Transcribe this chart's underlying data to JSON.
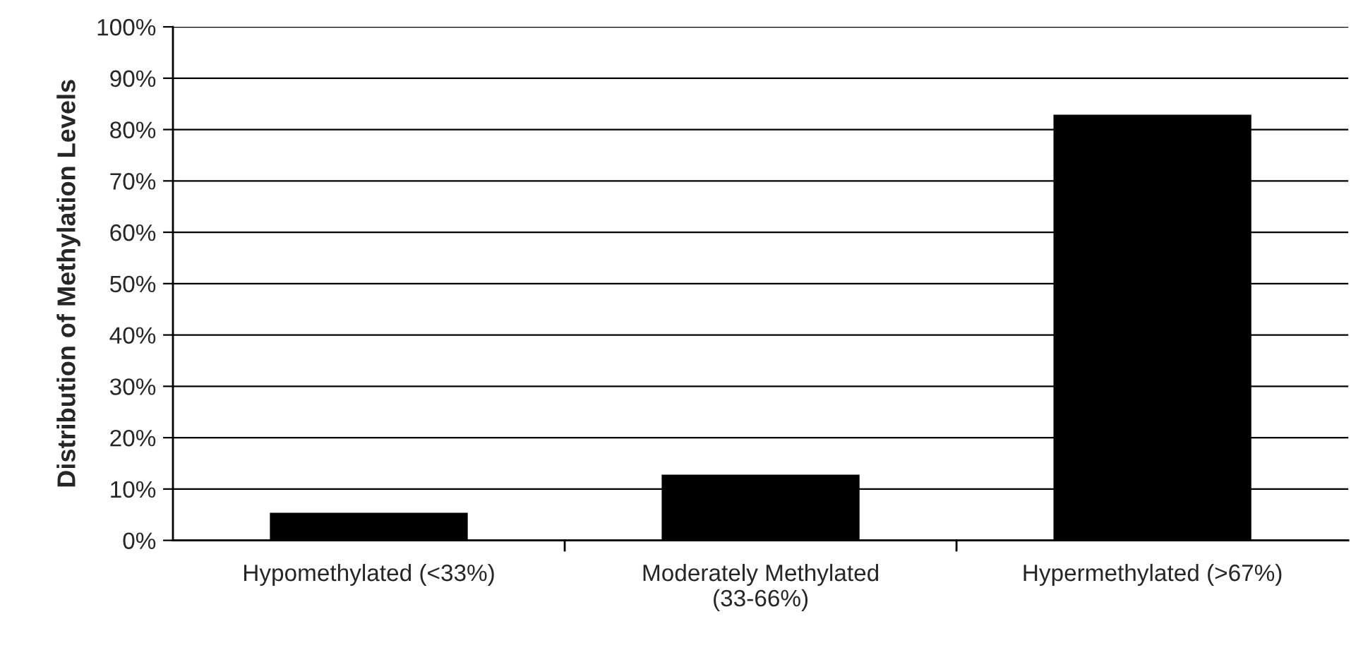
{
  "chart_data": {
    "type": "bar",
    "ylabel": "Distribution of Methylation Levels",
    "categories": [
      "Hypomethylated (<33%)",
      "Moderately Methylated\n(33-66%)",
      "Hypermethylated (>67%)"
    ],
    "values": [
      5.2,
      12.6,
      82.7
    ],
    "color": "#000000",
    "ylim": [
      0,
      100
    ],
    "yticks": [
      {
        "value": 0,
        "label": "0%"
      },
      {
        "value": 10,
        "label": "10%"
      },
      {
        "value": 20,
        "label": "20%"
      },
      {
        "value": 30,
        "label": "30%"
      },
      {
        "value": 40,
        "label": "40%"
      },
      {
        "value": 50,
        "label": "50%"
      },
      {
        "value": 60,
        "label": "60%"
      },
      {
        "value": 70,
        "label": "70%"
      },
      {
        "value": 80,
        "label": "80%"
      },
      {
        "value": 90,
        "label": "90%"
      },
      {
        "value": 100,
        "label": "100%"
      }
    ],
    "grid": "y"
  }
}
